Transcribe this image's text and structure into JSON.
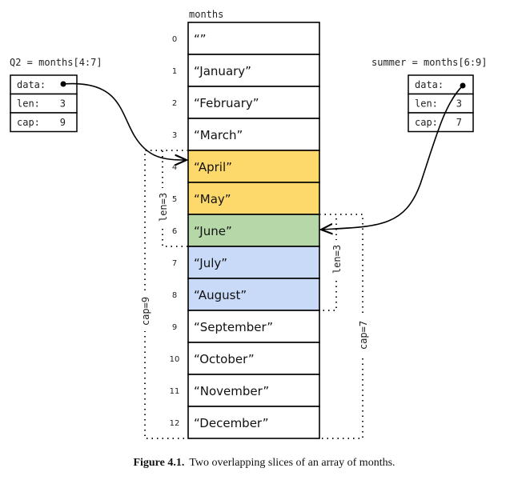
{
  "array": {
    "name": "months",
    "items": [
      "“”",
      "“January”",
      "“February”",
      "“March”",
      "“April”",
      "“May”",
      "“June”",
      "“July”",
      "“August”",
      "“September”",
      "“October”",
      "“November”",
      "“December”"
    ]
  },
  "slices": [
    {
      "label": "Q2 = months[4:7]",
      "fields": [
        {
          "name": "data:",
          "value": ""
        },
        {
          "name": "len:",
          "value": "3"
        },
        {
          "name": "cap:",
          "value": "9"
        }
      ],
      "len_label": "len=3",
      "cap_label": "cap=9"
    },
    {
      "label": "summer = months[6:9]",
      "fields": [
        {
          "name": "data:",
          "value": ""
        },
        {
          "name": "len:",
          "value": "3"
        },
        {
          "name": "cap:",
          "value": "7"
        }
      ],
      "len_label": "len=3",
      "cap_label": "cap=7"
    }
  ],
  "caption": {
    "bold": "Figure 4.1.",
    "text": "Two overlapping slices of an array of months."
  },
  "colors": {
    "q2_only": "#fdd96b",
    "overlap": "#b6d7a8",
    "summer_only": "#c9daf8"
  }
}
